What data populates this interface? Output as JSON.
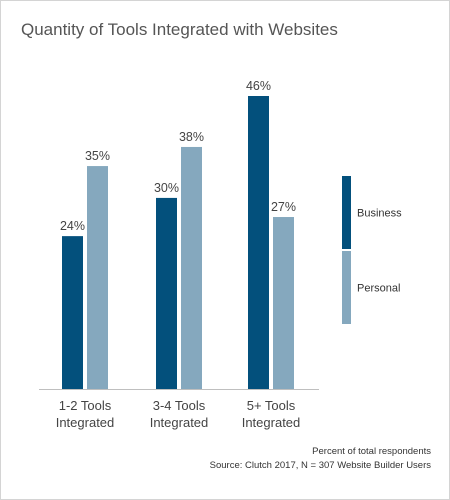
{
  "colors": {
    "business": "#03507c",
    "personal": "#85a8be",
    "baseline": "#bfbfbf"
  },
  "footer": {
    "note": "Percent of total respondents",
    "source": "Source: Clutch 2017, N = 307 Website Builder Users"
  },
  "chart_data": {
    "type": "bar",
    "title": "Quantity of Tools Integrated with Websites",
    "categories": [
      [
        "1-2 Tools",
        "Integrated"
      ],
      [
        "3-4 Tools",
        "Integrated"
      ],
      [
        "5+ Tools",
        "Integrated"
      ]
    ],
    "series": [
      {
        "name": "Business",
        "values": [
          24,
          30,
          46
        ],
        "labels": [
          "24%",
          "30%",
          "46%"
        ]
      },
      {
        "name": "Personal",
        "values": [
          35,
          38,
          27
        ],
        "labels": [
          "35%",
          "38%",
          "27%"
        ]
      }
    ],
    "ylim": [
      0,
      46
    ],
    "unit": "%",
    "grid": false,
    "legend": "right"
  }
}
